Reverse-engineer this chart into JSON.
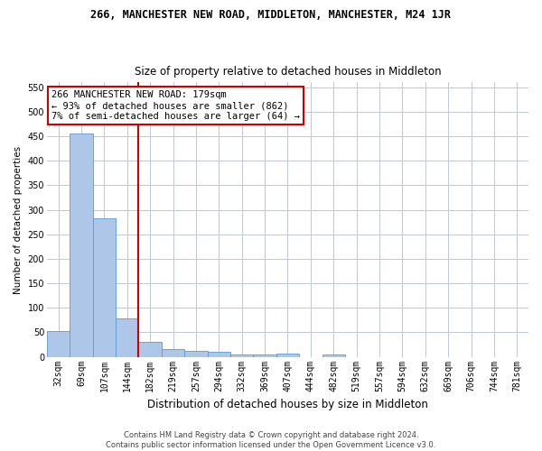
{
  "title": "266, MANCHESTER NEW ROAD, MIDDLETON, MANCHESTER, M24 1JR",
  "subtitle": "Size of property relative to detached houses in Middleton",
  "xlabel": "Distribution of detached houses by size in Middleton",
  "ylabel": "Number of detached properties",
  "categories": [
    "32sqm",
    "69sqm",
    "107sqm",
    "144sqm",
    "182sqm",
    "219sqm",
    "257sqm",
    "294sqm",
    "332sqm",
    "369sqm",
    "407sqm",
    "444sqm",
    "482sqm",
    "519sqm",
    "557sqm",
    "594sqm",
    "632sqm",
    "669sqm",
    "706sqm",
    "744sqm",
    "781sqm"
  ],
  "values": [
    52,
    455,
    283,
    78,
    30,
    15,
    13,
    10,
    5,
    5,
    6,
    0,
    5,
    0,
    0,
    0,
    0,
    0,
    0,
    0,
    0
  ],
  "bar_color": "#aec6e8",
  "bar_edge_color": "#5b9bd5",
  "vline_x_index": 4,
  "vline_color": "#cc0000",
  "annotation_text": "266 MANCHESTER NEW ROAD: 179sqm\n← 93% of detached houses are smaller (862)\n7% of semi-detached houses are larger (64) →",
  "annotation_box_color": "#ffffff",
  "annotation_box_edge": "#cc0000",
  "ylim": [
    0,
    560
  ],
  "yticks": [
    0,
    50,
    100,
    150,
    200,
    250,
    300,
    350,
    400,
    450,
    500,
    550
  ],
  "footer1": "Contains HM Land Registry data © Crown copyright and database right 2024.",
  "footer2": "Contains public sector information licensed under the Open Government Licence v3.0.",
  "background_color": "#ffffff",
  "grid_color": "#c0c8d8",
  "title_fontsize": 8.5,
  "subtitle_fontsize": 8.5,
  "ylabel_fontsize": 7.5,
  "xlabel_fontsize": 8.5,
  "tick_fontsize": 7,
  "annotation_fontsize": 7.5,
  "footer_fontsize": 6
}
